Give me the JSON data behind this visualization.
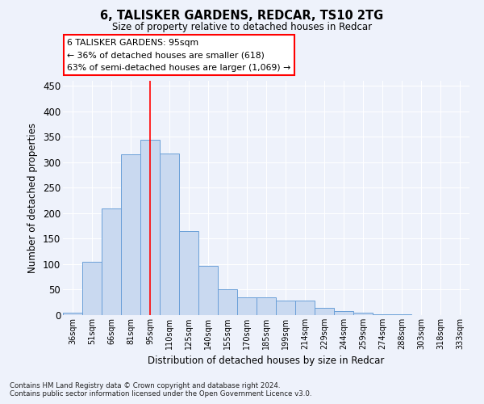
{
  "title1": "6, TALISKER GARDENS, REDCAR, TS10 2TG",
  "title2": "Size of property relative to detached houses in Redcar",
  "xlabel": "Distribution of detached houses by size in Redcar",
  "ylabel": "Number of detached properties",
  "categories": [
    "36sqm",
    "51sqm",
    "66sqm",
    "81sqm",
    "95sqm",
    "110sqm",
    "125sqm",
    "140sqm",
    "155sqm",
    "170sqm",
    "185sqm",
    "199sqm",
    "214sqm",
    "229sqm",
    "244sqm",
    "259sqm",
    "274sqm",
    "288sqm",
    "303sqm",
    "318sqm",
    "333sqm"
  ],
  "values": [
    5,
    105,
    210,
    315,
    345,
    317,
    165,
    97,
    50,
    35,
    35,
    29,
    29,
    15,
    8,
    5,
    2,
    1,
    0,
    0,
    0
  ],
  "bar_color": "#c9d9f0",
  "bar_edge_color": "#6a9fd8",
  "red_line_x": 4,
  "ylim": [
    0,
    460
  ],
  "yticks": [
    0,
    50,
    100,
    150,
    200,
    250,
    300,
    350,
    400,
    450
  ],
  "annotation_line1": "6 TALISKER GARDENS: 95sqm",
  "annotation_line2": "← 36% of detached houses are smaller (618)",
  "annotation_line3": "63% of semi-detached houses are larger (1,069) →",
  "footer1": "Contains HM Land Registry data © Crown copyright and database right 2024.",
  "footer2": "Contains public sector information licensed under the Open Government Licence v3.0.",
  "background_color": "#eef2fb",
  "grid_color": "#ffffff"
}
